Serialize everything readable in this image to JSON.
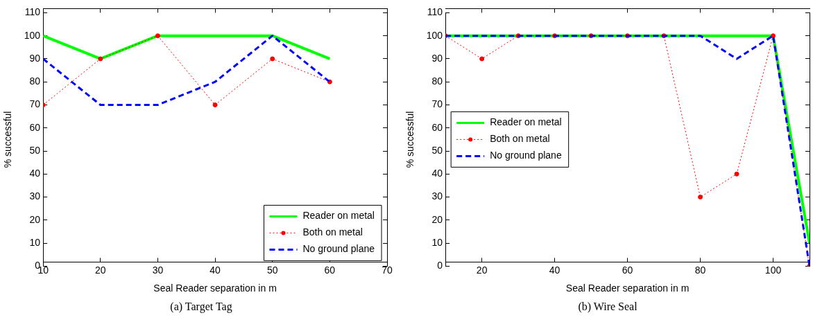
{
  "chart_data": [
    {
      "type": "line",
      "title": "(a) Target Tag",
      "xlabel": "Seal Reader separation in m",
      "ylabel": "% successful",
      "x": [
        10,
        20,
        30,
        40,
        50,
        60
      ],
      "xlim": [
        10,
        70
      ],
      "xticks": [
        10,
        20,
        30,
        40,
        50,
        60,
        70
      ],
      "ylim": [
        0,
        110
      ],
      "yticks": [
        0,
        10,
        20,
        30,
        40,
        50,
        60,
        70,
        80,
        90,
        100,
        110
      ],
      "grid": false,
      "legend": "bottom right",
      "series": [
        {
          "name": "Reader on metal",
          "color": "#00ff00",
          "values": [
            100,
            90,
            100,
            100,
            100,
            90
          ],
          "line_style": "solid",
          "marker": "none"
        },
        {
          "name": "Both on metal",
          "color": "#ff0000",
          "values": [
            70,
            90,
            100,
            70,
            90,
            80
          ],
          "line_style": "dotted",
          "marker": "circle"
        },
        {
          "name": "No ground plane",
          "color": "#0000ff",
          "values": [
            90,
            70,
            70,
            80,
            100,
            80
          ],
          "line_style": "dashed",
          "marker": "none"
        }
      ]
    },
    {
      "type": "line",
      "title": "(b) Wire Seal",
      "xlabel": "Seal Reader separation in m",
      "ylabel": "% successful",
      "x": [
        10,
        20,
        30,
        40,
        50,
        60,
        70,
        80,
        90,
        100,
        110
      ],
      "xlim": [
        10,
        110
      ],
      "xticks": [
        20,
        40,
        60,
        80,
        100
      ],
      "ylim": [
        0,
        110
      ],
      "yticks": [
        0,
        10,
        20,
        30,
        40,
        50,
        60,
        70,
        80,
        90,
        100,
        110
      ],
      "grid": false,
      "legend": "left",
      "series": [
        {
          "name": "Reader on metal",
          "color": "#00ff00",
          "values": [
            100,
            100,
            100,
            100,
            100,
            100,
            100,
            100,
            100,
            100,
            10
          ],
          "line_style": "solid",
          "marker": "none"
        },
        {
          "name": "Both on metal",
          "color": "#ff0000",
          "values": [
            100,
            90,
            100,
            100,
            100,
            100,
            100,
            30,
            40,
            100,
            0
          ],
          "line_style": "dotted",
          "marker": "circle"
        },
        {
          "name": "No ground plane",
          "color": "#0000ff",
          "values": [
            100,
            100,
            100,
            100,
            100,
            100,
            100,
            100,
            90,
            100,
            0
          ],
          "line_style": "dashed",
          "marker": "none"
        }
      ]
    }
  ]
}
